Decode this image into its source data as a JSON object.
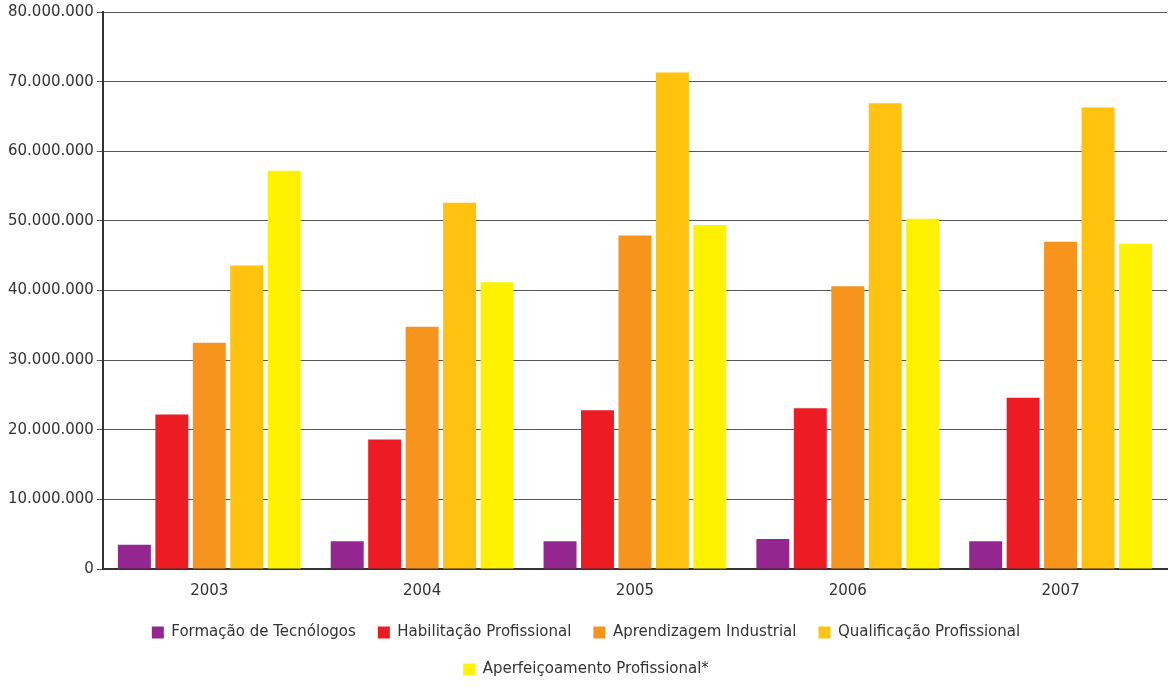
{
  "chart_data": {
    "type": "bar",
    "categories": [
      "2003",
      "2004",
      "2005",
      "2006",
      "2007"
    ],
    "series": [
      {
        "name": "Formação de Tecnólogos",
        "color": "#93278f",
        "values": [
          3500000,
          4000000,
          4000000,
          4300000,
          4000000
        ]
      },
      {
        "name": "Habilitação Profissional",
        "color": "#ed1c24",
        "values": [
          22200000,
          18600000,
          22800000,
          23100000,
          24600000
        ]
      },
      {
        "name": "Aprendizagem Industrial",
        "color": "#f7941d",
        "values": [
          32500000,
          34800000,
          47900000,
          40600000,
          47000000
        ]
      },
      {
        "name": "Qualificação Profissional",
        "color": "#ffc20e",
        "values": [
          43600000,
          52600000,
          71300000,
          66900000,
          66300000
        ]
      },
      {
        "name": "Aperfeiçoamento Profissional*",
        "color": "#fff200",
        "values": [
          57200000,
          41200000,
          49400000,
          50300000,
          46700000
        ]
      }
    ],
    "ylim": [
      0,
      80000000
    ],
    "yticks": [
      {
        "value": 0,
        "label": "0"
      },
      {
        "value": 10000000,
        "label": "10.000.000"
      },
      {
        "value": 20000000,
        "label": "20.000.000"
      },
      {
        "value": 30000000,
        "label": "30.000.000"
      },
      {
        "value": 40000000,
        "label": "40.000.000"
      },
      {
        "value": 50000000,
        "label": "50.000.000"
      },
      {
        "value": 60000000,
        "label": "60.000.000"
      },
      {
        "value": 70000000,
        "label": "70.000.000"
      },
      {
        "value": 80000000,
        "label": "80.000.000"
      }
    ],
    "grid": "y",
    "legend": "bottom"
  }
}
